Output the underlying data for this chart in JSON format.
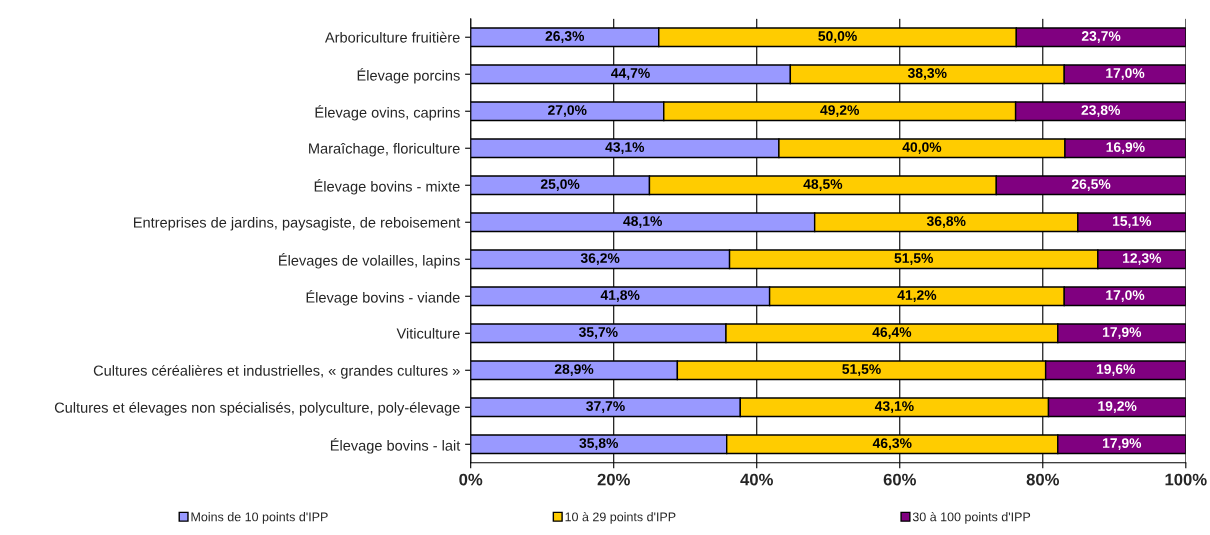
{
  "chart_data": {
    "type": "bar",
    "orientation": "horizontal",
    "stacked": true,
    "categories": [
      "Arboriculture fruitière",
      "Élevage porcins",
      "Élevage ovins, caprins",
      "Maraîchage, floriculture",
      "Élevage bovins - mixte",
      "Entreprises de jardins, paysagiste, de reboisement",
      "Élevages de volailles, lapins",
      "Élevage bovins - viande",
      "Viticulture",
      "Cultures céréalières et industrielles, « grandes cultures »",
      "Cultures et élevages non spécialisés, polyculture, poly-élevage",
      "Élevage bovins - lait"
    ],
    "series": [
      {
        "name": "Moins de 10 points d'IPP",
        "color": "#9999ff",
        "values": [
          26.3,
          44.7,
          27.0,
          43.1,
          25.0,
          48.1,
          36.2,
          41.8,
          35.7,
          28.9,
          37.7,
          35.8
        ],
        "value_labels": [
          "26,3%",
          "44,7%",
          "27,0%",
          "43,1%",
          "25,0%",
          "48,1%",
          "36,2%",
          "41,8%",
          "35,7%",
          "28,9%",
          "37,7%",
          "35,8%"
        ]
      },
      {
        "name": "10 à 29 points d'IPP",
        "color": "#ffcc00",
        "values": [
          50.0,
          38.3,
          49.2,
          40.0,
          48.5,
          36.8,
          51.5,
          41.2,
          46.4,
          51.5,
          43.1,
          46.3
        ],
        "value_labels": [
          "50,0%",
          "38,3%",
          "49,2%",
          "40,0%",
          "48,5%",
          "36,8%",
          "51,5%",
          "41,2%",
          "46,4%",
          "51,5%",
          "43,1%",
          "46,3%"
        ]
      },
      {
        "name": "30 à 100 points d'IPP",
        "color": "#800080",
        "values": [
          23.7,
          17.0,
          23.8,
          16.9,
          26.5,
          15.1,
          12.3,
          17.0,
          17.9,
          19.6,
          19.2,
          17.9
        ],
        "value_labels": [
          "23,7%",
          "17,0%",
          "23,8%",
          "16,9%",
          "26,5%",
          "15,1%",
          "12,3%",
          "17,0%",
          "17,9%",
          "19,6%",
          "19,2%",
          "17,9%"
        ]
      }
    ],
    "xlim": [
      0,
      100
    ],
    "xticks": [
      {
        "value": 0,
        "label": "0%"
      },
      {
        "value": 20,
        "label": "20%"
      },
      {
        "value": 40,
        "label": "40%"
      },
      {
        "value": 60,
        "label": "60%"
      },
      {
        "value": 80,
        "label": "80%"
      },
      {
        "value": 100,
        "label": "100%"
      }
    ],
    "grid": "x",
    "legend": "bottom"
  }
}
